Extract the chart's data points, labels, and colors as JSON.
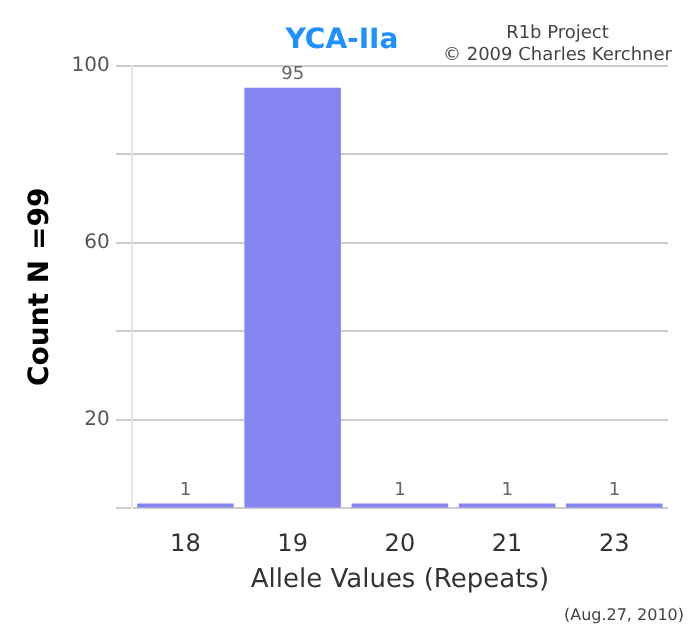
{
  "chart_data": {
    "type": "bar",
    "title": "YCA-IIa",
    "xlabel": "Allele Values (Repeats)",
    "ylabel": "Count N =99",
    "categories": [
      "18",
      "19",
      "20",
      "21",
      "23"
    ],
    "values": [
      1,
      95,
      1,
      1,
      1
    ],
    "color": "#8585f2",
    "ylim": [
      0,
      100
    ],
    "yticks": [
      {
        "value": 0,
        "label": null
      },
      20,
      {
        "value": 40,
        "label": null
      },
      60,
      {
        "value": 80,
        "label": null
      },
      100
    ],
    "grid": "y",
    "data_labels": true,
    "annotations": [
      "R1b Project",
      "© 2009 Charles Kerchner",
      "(Aug.27, 2010)"
    ]
  }
}
